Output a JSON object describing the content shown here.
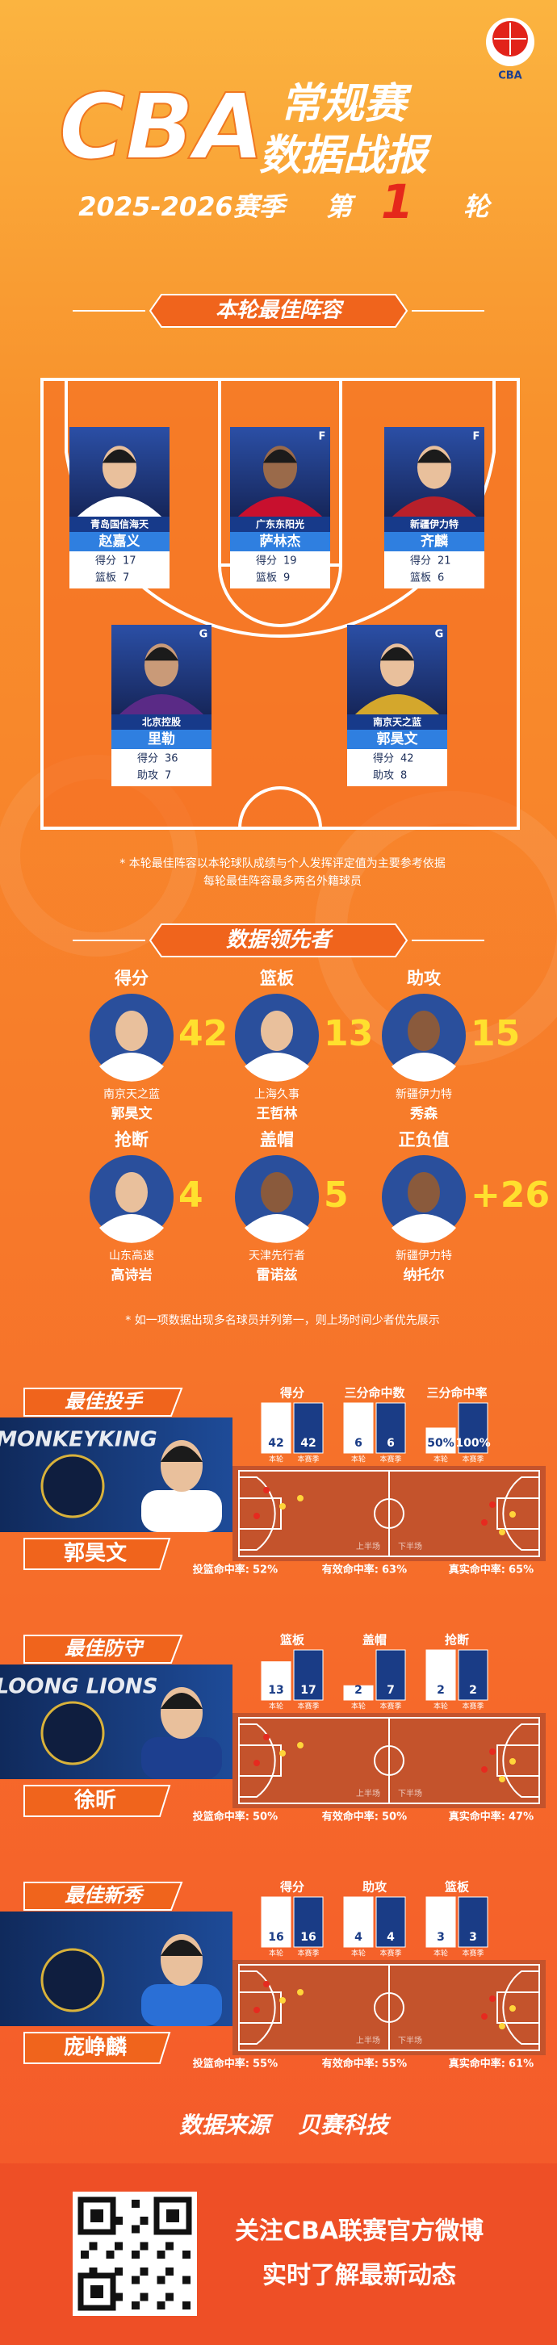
{
  "header": {
    "brand": "CBA",
    "title_line1": "常规赛",
    "title_line2": "数据战报",
    "season": "2025-2026赛季",
    "round_prefix": "第",
    "round": "1",
    "round_suffix": "轮"
  },
  "lineup": {
    "title": "本轮最佳阵容",
    "players": [
      {
        "team": "青岛国信海天",
        "name": "赵嘉义",
        "stats": [
          {
            "label": "得分",
            "value": 17
          },
          {
            "label": "篮板",
            "value": 7
          }
        ]
      },
      {
        "team": "广东东阳光",
        "name": "萨林杰",
        "position": "F",
        "stats": [
          {
            "label": "得分",
            "value": 19
          },
          {
            "label": "篮板",
            "value": 9
          }
        ]
      },
      {
        "team": "新疆伊力特",
        "name": "齐麟",
        "position": "F",
        "stats": [
          {
            "label": "得分",
            "value": 21
          },
          {
            "label": "篮板",
            "value": 6
          }
        ]
      },
      {
        "team": "北京控股",
        "name": "里勒",
        "position": "G",
        "stats": [
          {
            "label": "得分",
            "value": 36
          },
          {
            "label": "助攻",
            "value": 7
          }
        ]
      },
      {
        "team": "南京天之蓝",
        "name": "郭昊文",
        "position": "G",
        "stats": [
          {
            "label": "得分",
            "value": 42
          },
          {
            "label": "助攻",
            "value": 8
          }
        ]
      }
    ],
    "notes": [
      "* 本轮最佳阵容以本轮球队成绩与个人发挥评定值为主要参考依据",
      "每轮最佳阵容最多两名外籍球员"
    ]
  },
  "leaders": {
    "title": "数据领先者",
    "items": [
      {
        "category": "得分",
        "value": 42,
        "team": "南京天之蓝",
        "name": "郭昊文"
      },
      {
        "category": "篮板",
        "value": 13,
        "team": "上海久事",
        "name": "王哲林"
      },
      {
        "category": "助攻",
        "value": 15,
        "team": "新疆伊力特",
        "name": "秀森"
      },
      {
        "category": "抢断",
        "value": 4,
        "team": "山东高速",
        "name": "高诗岩"
      },
      {
        "category": "盖帽",
        "value": 5,
        "team": "天津先行者",
        "name": "雷诺兹"
      },
      {
        "category": "正负值",
        "value": "+26",
        "team": "新疆伊力特",
        "name": "纳托尔"
      }
    ],
    "note": "* 如一项数据出现多名球员并列第一，则上场时间少者优先展示"
  },
  "awards": [
    {
      "title": "最佳投手",
      "player": "郭昊文",
      "logo_text": "MONKEYKING",
      "bar_labels": [
        "本轮",
        "本赛季"
      ],
      "half_labels": [
        "上半场",
        "下半场"
      ],
      "stats": [
        {
          "label": "得分",
          "values": [
            42,
            42
          ]
        },
        {
          "label": "三分命中数",
          "values": [
            6,
            6
          ]
        },
        {
          "label": "三分命中率",
          "values": [
            50,
            100
          ],
          "value_labels": [
            "50%",
            "100%"
          ]
        }
      ],
      "rates": [
        {
          "label": "投篮命中率:",
          "value": "52%"
        },
        {
          "label": "有效命中率:",
          "value": "63%"
        },
        {
          "label": "真实命中率:",
          "value": "65%"
        }
      ]
    },
    {
      "title": "最佳防守",
      "player": "徐昕",
      "logo_text": "LOONG LIONS",
      "bar_labels": [
        "本轮",
        "本赛季"
      ],
      "half_labels": [
        "上半场",
        "下半场"
      ],
      "stats": [
        {
          "label": "篮板",
          "values": [
            13,
            17
          ]
        },
        {
          "label": "盖帽",
          "values": [
            2,
            7
          ]
        },
        {
          "label": "抢断",
          "values": [
            2,
            2
          ]
        }
      ],
      "rates": [
        {
          "label": "投篮命中率:",
          "value": "50%"
        },
        {
          "label": "有效命中率:",
          "value": "50%"
        },
        {
          "label": "真实命中率:",
          "value": "47%"
        }
      ]
    },
    {
      "title": "最佳新秀",
      "player": "庞峥麟",
      "bar_labels": [
        "本轮",
        "本赛季"
      ],
      "half_labels": [
        "上半场",
        "下半场"
      ],
      "stats": [
        {
          "label": "得分",
          "values": [
            16,
            16
          ]
        },
        {
          "label": "助攻",
          "values": [
            4,
            4
          ]
        },
        {
          "label": "篮板",
          "values": [
            3,
            3
          ]
        }
      ],
      "rates": [
        {
          "label": "投篮命中率:",
          "value": "55%"
        },
        {
          "label": "有效命中率:",
          "value": "55%"
        },
        {
          "label": "真实命中率:",
          "value": "61%"
        }
      ]
    }
  ],
  "footer": {
    "source_label": "数据来源",
    "source": "贝赛科技",
    "follow": "关注CBA联赛官方微博",
    "follow_sub": "实时了解最新动态"
  }
}
